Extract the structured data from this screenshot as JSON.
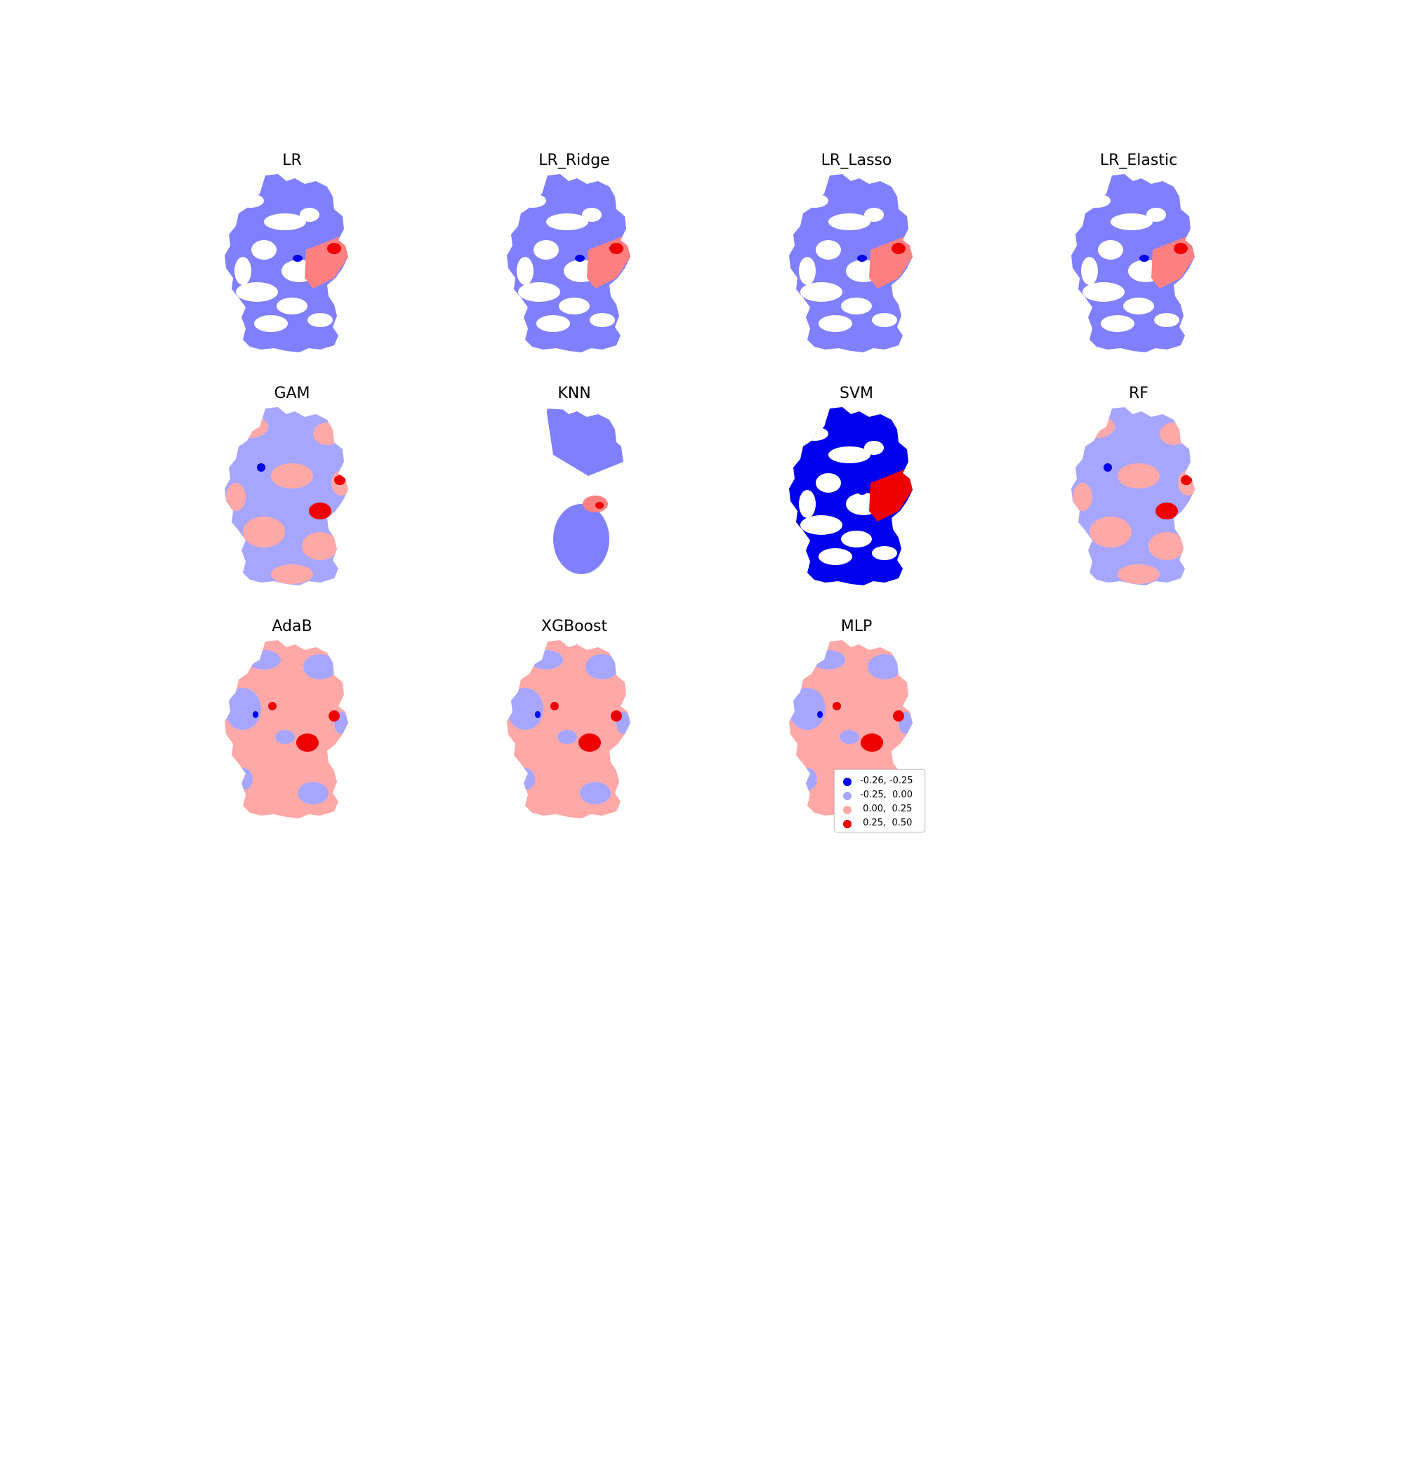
{
  "colors": {
    "strong_negative": "#0000ee",
    "weak_negative": "#a6a6ff",
    "weak_negative_linear": "#8080ff",
    "weak_positive": "#ffa8a8",
    "weak_positive_linear": "#ff8080",
    "strong_positive": "#ee0000"
  },
  "panels": [
    {
      "title": "LR",
      "palette": "linear"
    },
    {
      "title": "LR_Ridge",
      "palette": "linear"
    },
    {
      "title": "LR_Lasso",
      "palette": "linear"
    },
    {
      "title": "LR_Elastic",
      "palette": "linear"
    },
    {
      "title": "GAM",
      "palette": "mixed"
    },
    {
      "title": "KNN",
      "palette": "sparse"
    },
    {
      "title": "SVM",
      "palette": "strong"
    },
    {
      "title": "RF",
      "palette": "mixed"
    },
    {
      "title": "AdaB",
      "palette": "positive"
    },
    {
      "title": "XGBoost",
      "palette": "positive"
    },
    {
      "title": "MLP",
      "palette": "positive"
    }
  ],
  "legend": {
    "items": [
      {
        "label": "-0.26, -0.25",
        "color": "#0000ee"
      },
      {
        "label": "-0.25,  0.00",
        "color": "#a6a6ff"
      },
      {
        "label": " 0.00,  0.25",
        "color": "#ffa8a8"
      },
      {
        "label": " 0.25,  0.50",
        "color": "#ee0000"
      }
    ]
  }
}
